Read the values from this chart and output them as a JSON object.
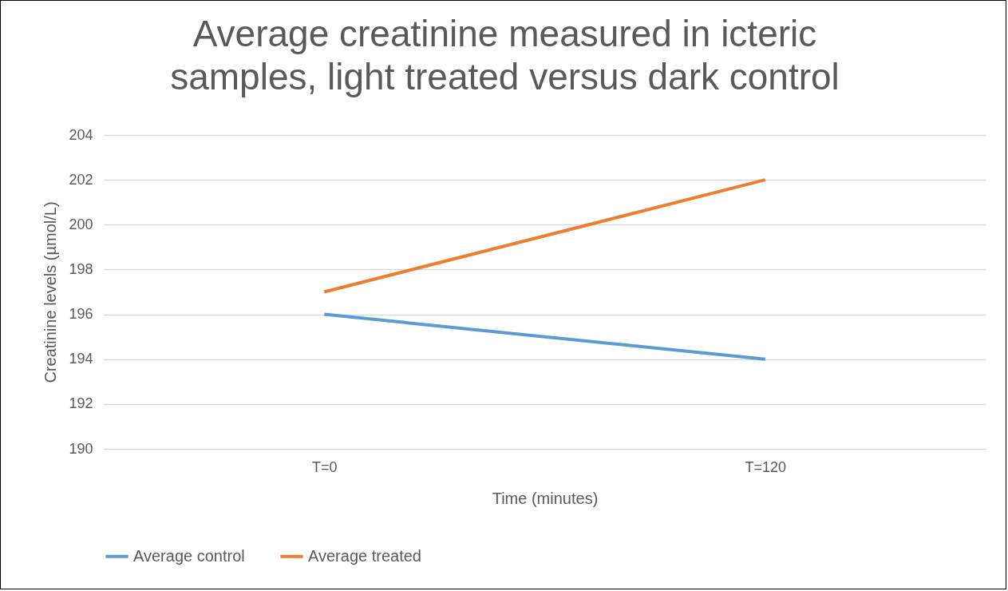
{
  "chart_data": {
    "type": "line",
    "title": "Average creatinine measured in icteric samples, light treated versus dark control",
    "xlabel": "Time (minutes)",
    "ylabel": "Creatinine levels  (µmol/L)",
    "categories": [
      "T=0",
      "T=120"
    ],
    "series": [
      {
        "name": "Average control",
        "color": "#5b9bd5",
        "values": [
          196,
          194
        ]
      },
      {
        "name": "Average treated",
        "color": "#ed7d31",
        "values": [
          197,
          202
        ]
      }
    ],
    "ylim": [
      190,
      204
    ],
    "yticks": [
      190,
      192,
      194,
      196,
      198,
      200,
      202,
      204
    ],
    "grid": "y",
    "legend": "bottom",
    "marker": "none",
    "line_style": "solid"
  }
}
